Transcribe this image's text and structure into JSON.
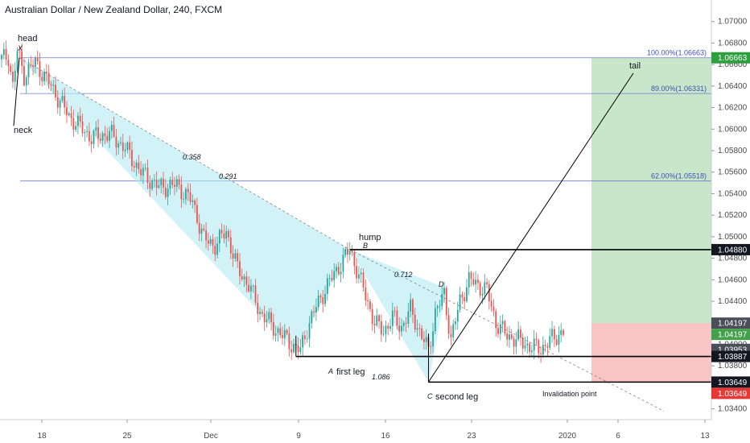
{
  "title": "Australian Dollar / New Zealand Dollar, 240, FXCM",
  "chart_data": {
    "type": "candlestick",
    "symbol": "AUDNZD",
    "timeframe": "240",
    "source": "FXCM",
    "ylim": [
      1.033,
      1.072
    ],
    "y_ticks": [
      "1.07000",
      "1.06800",
      "1.06600",
      "1.06400",
      "1.06200",
      "1.06000",
      "1.05800",
      "1.05600",
      "1.05400",
      "1.05200",
      "1.05000",
      "1.04800",
      "1.04600",
      "1.04400",
      "1.04200",
      "1.04000",
      "1.03800",
      "1.03600",
      "1.03400"
    ],
    "x_ticks": [
      "18",
      "25",
      "Dec",
      "9",
      "16",
      "23",
      "2020",
      "6",
      "13"
    ],
    "price_path": [
      [
        0,
        1.0665
      ],
      [
        3,
        1.0668
      ],
      [
        5,
        1.064
      ],
      [
        7,
        1.0672
      ],
      [
        10,
        1.065
      ],
      [
        15,
        1.0662
      ],
      [
        22,
        1.064
      ],
      [
        30,
        1.0612
      ],
      [
        40,
        1.0592
      ],
      [
        48,
        1.0596
      ],
      [
        55,
        1.0582
      ],
      [
        62,
        1.056
      ],
      [
        70,
        1.0546
      ],
      [
        78,
        1.0548
      ],
      [
        85,
        1.0532
      ],
      [
        90,
        1.0498
      ],
      [
        95,
        1.0492
      ],
      [
        100,
        1.0505
      ],
      [
        105,
        1.047
      ],
      [
        110,
        1.0455
      ],
      [
        115,
        1.043
      ],
      [
        120,
        1.0418
      ],
      [
        125,
        1.0408
      ],
      [
        130,
        1.0398
      ],
      [
        133,
        1.0394
      ],
      [
        136,
        1.0415
      ],
      [
        140,
        1.0435
      ],
      [
        145,
        1.0455
      ],
      [
        150,
        1.0472
      ],
      [
        155,
        1.0488
      ],
      [
        158,
        1.047
      ],
      [
        162,
        1.0445
      ],
      [
        166,
        1.042
      ],
      [
        170,
        1.0412
      ],
      [
        174,
        1.0425
      ],
      [
        178,
        1.0416
      ],
      [
        182,
        1.0432
      ],
      [
        186,
        1.0412
      ],
      [
        190,
        1.0394
      ],
      [
        193,
        1.043
      ],
      [
        197,
        1.0446
      ],
      [
        200,
        1.0405
      ],
      [
        204,
        1.044
      ],
      [
        208,
        1.046
      ],
      [
        212,
        1.0455
      ],
      [
        216,
        1.045
      ],
      [
        220,
        1.042
      ],
      [
        225,
        1.0408
      ],
      [
        230,
        1.0404
      ],
      [
        235,
        1.0398
      ],
      [
        240,
        1.0396
      ],
      [
        245,
        1.0405
      ],
      [
        250,
        1.0412
      ]
    ],
    "horizontal_lines": [
      {
        "label": "100.00%(1.06663)",
        "value": 1.06663,
        "color": "#6c7bd1"
      },
      {
        "label": "89.00%(1.06331)",
        "value": 1.06331,
        "color": "#6c7bd1"
      },
      {
        "label": "62.00%(1.05518)",
        "value": 1.05518,
        "color": "#6c7bd1"
      }
    ],
    "price_badges": [
      {
        "value": 1.06663,
        "text": "1.06663",
        "bg": "#2e9e3e"
      },
      {
        "value": 1.0488,
        "text": "1.04880",
        "bg": "#131722"
      },
      {
        "value": 1.04197,
        "text": "1.04197",
        "bg": "#4a4e59"
      },
      {
        "value": 1.04197,
        "text": "1.04197",
        "bg": "#43a04c",
        "offset": 14
      },
      {
        "value": 1.03953,
        "text": "1.03953",
        "bg": "#4a4e59"
      },
      {
        "value": 1.03887,
        "text": "1.03887",
        "bg": "#131722"
      },
      {
        "value": 1.03649,
        "text": "1.03649",
        "bg": "#131722"
      },
      {
        "value": 1.03649,
        "text": "1.03649",
        "bg": "#e53935",
        "offset": 14
      }
    ],
    "pattern": {
      "points": [
        {
          "name": "X",
          "label": "head",
          "value": 1.06663
        },
        {
          "name": "A",
          "label": "first leg",
          "value": 1.0394
        },
        {
          "name": "B",
          "label": "hump",
          "value": 1.0488
        },
        {
          "name": "C",
          "label": "second leg",
          "value": 1.0365
        },
        {
          "name": "D",
          "label": "",
          "value": 1.0452
        }
      ],
      "ratios": [
        "0.358",
        "0.291",
        "0.712",
        "1.086"
      ],
      "other_labels": [
        "neck",
        "tail",
        "Invalidation point"
      ]
    },
    "position": {
      "target": 1.06663,
      "entry": 1.04197,
      "stop": 1.03649,
      "profit_color": "#c8e6c9",
      "loss_color": "#f8c4c4"
    },
    "levels": [
      {
        "value": 1.0488
      },
      {
        "value": 1.03887
      },
      {
        "value": 1.03649
      }
    ]
  }
}
